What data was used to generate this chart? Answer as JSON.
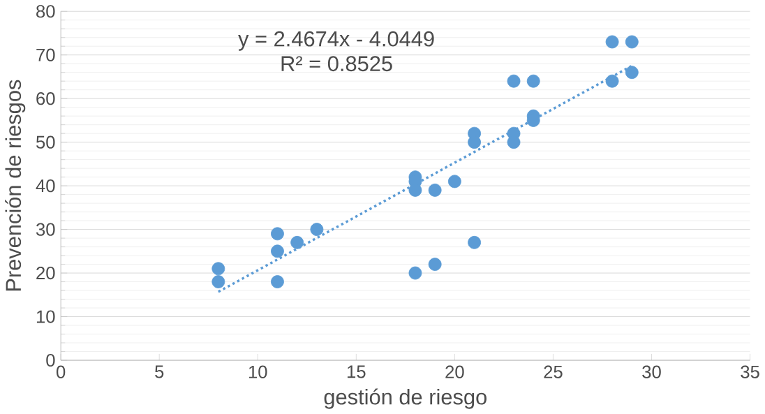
{
  "chart_data": {
    "type": "scatter",
    "xlabel": "gestión de riesgo",
    "ylabel": "Prevención de riesgos",
    "xlim": [
      0,
      35
    ],
    "ylim": [
      0,
      80
    ],
    "xticks": [
      0,
      5,
      10,
      15,
      20,
      25,
      30,
      35
    ],
    "yticks": [
      0,
      10,
      20,
      30,
      40,
      50,
      60,
      70,
      80
    ],
    "grid": "y",
    "annotations": [
      "y = 2.4674x - 4.0449",
      "R² = 0.8525"
    ],
    "series": [
      {
        "color": "#5b9bd5",
        "marker": "circle",
        "x": [
          8,
          8,
          11,
          11,
          11,
          12,
          13,
          18,
          18,
          18,
          18,
          19,
          19,
          20,
          21,
          21,
          21,
          23,
          23,
          23,
          24,
          24,
          24,
          28,
          28,
          29,
          29
        ],
        "values": [
          21,
          18,
          29,
          25,
          18,
          27,
          30,
          42,
          41,
          39,
          20,
          39,
          22,
          41,
          52,
          50,
          27,
          64,
          52,
          50,
          64,
          56,
          55,
          73,
          64,
          73,
          66
        ]
      },
      {
        "type": "line",
        "color": "#5b9bd5",
        "marker": "none",
        "line_style": "dotted",
        "x": [
          8,
          29
        ],
        "values": [
          15.7,
          67.5
        ]
      }
    ]
  }
}
